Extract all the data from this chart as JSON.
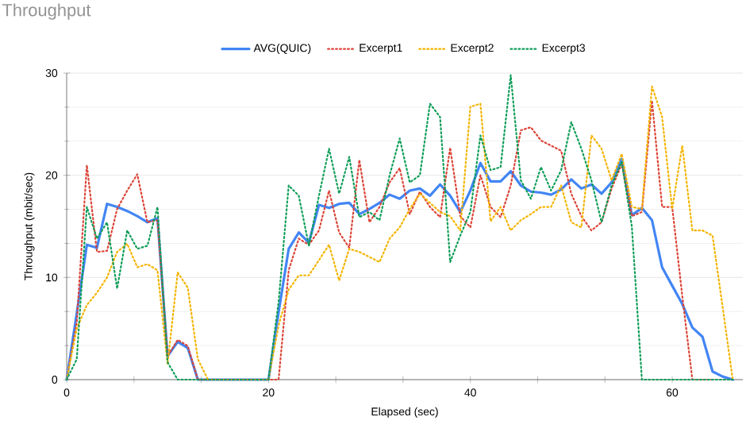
{
  "chart_data": {
    "type": "line",
    "title": "Throughput",
    "xlabel": "Elapsed (sec)",
    "ylabel": "Throughput (mbit/sec)",
    "x": [
      0,
      1,
      2,
      3,
      4,
      5,
      6,
      7,
      8,
      9,
      10,
      11,
      12,
      13,
      14,
      15,
      16,
      17,
      18,
      19,
      20,
      21,
      22,
      23,
      24,
      25,
      26,
      27,
      28,
      29,
      30,
      31,
      32,
      33,
      34,
      35,
      36,
      37,
      38,
      39,
      40,
      41,
      42,
      43,
      44,
      45,
      46,
      47,
      48,
      49,
      50,
      51,
      52,
      53,
      54,
      55,
      56,
      57,
      58,
      59,
      60,
      61,
      62,
      63,
      64,
      65,
      66
    ],
    "series": [
      {
        "name": "AVG(QUIC)",
        "color": "#4285f4",
        "line_style": "solid",
        "values": [
          0,
          6.5,
          13.2,
          12.9,
          17.2,
          16.9,
          16.5,
          16,
          15.4,
          15.8,
          2.3,
          3.7,
          3.1,
          0,
          0,
          0,
          0,
          0,
          0,
          0,
          0,
          6.6,
          12.8,
          14.4,
          13.4,
          17.1,
          16.8,
          17.2,
          17.3,
          16.2,
          16.7,
          17.3,
          18.1,
          17.7,
          18.5,
          18.7,
          18,
          19.1,
          18,
          16.4,
          18.5,
          21.2,
          19.4,
          19.4,
          20.4,
          19,
          18.4,
          18.3,
          18.1,
          18.6,
          19.6,
          18.7,
          19.1,
          18.2,
          19.3,
          21.6,
          16.1,
          16.8,
          15.6,
          11,
          9.2,
          7.4,
          5.1,
          4.2,
          0.8,
          0.3,
          0
        ]
      },
      {
        "name": "Excerpt1",
        "color": "#db4437",
        "line_style": "dotted",
        "values": [
          0,
          5.6,
          21,
          12.5,
          12.6,
          16.7,
          18.5,
          20.1,
          15.4,
          15.6,
          2.3,
          3.9,
          3.3,
          0,
          0,
          0,
          0,
          0,
          0,
          0,
          0,
          0,
          10.7,
          13.8,
          13.2,
          14.6,
          18.5,
          14.4,
          12.9,
          21.5,
          15.4,
          16.9,
          19.3,
          20.7,
          16.2,
          18.4,
          16.9,
          15.9,
          22.7,
          16,
          14.9,
          20,
          16.9,
          15.9,
          19,
          24.4,
          24.7,
          23.4,
          22.9,
          22.4,
          18.2,
          16,
          14.6,
          15.4,
          18.7,
          21.1,
          16,
          16.4,
          27.3,
          16.9,
          16.9,
          8.2,
          0,
          0,
          0,
          null,
          null
        ]
      },
      {
        "name": "Excerpt2",
        "color": "#f4b400",
        "line_style": "dotted",
        "values": [
          0,
          5,
          7.3,
          8.5,
          10,
          12.5,
          13.3,
          11,
          11.3,
          10.7,
          1.5,
          10.5,
          9,
          2,
          0,
          0,
          0,
          0,
          0,
          0,
          0,
          5.3,
          8.8,
          10.2,
          10.2,
          11.7,
          13.2,
          9.7,
          12.8,
          12.5,
          12,
          11.5,
          13.8,
          14.9,
          16.7,
          18.2,
          17.3,
          16.4,
          16,
          14.6,
          26.7,
          27,
          15.5,
          16.9,
          14.6,
          15.6,
          16.2,
          16.9,
          16.9,
          19,
          15.4,
          14.9,
          23.9,
          22.6,
          19.5,
          22.1,
          16.9,
          16.7,
          28.7,
          25.7,
          16.7,
          22.9,
          14.6,
          14.6,
          14.1,
          7.1,
          0
        ]
      },
      {
        "name": "Excerpt3",
        "color": "#0f9d58",
        "line_style": "dotted",
        "values": [
          0,
          2,
          16.9,
          13.8,
          15.4,
          8.9,
          14.6,
          12.8,
          13.1,
          16.9,
          1.7,
          0,
          0,
          0,
          0,
          0,
          0,
          0,
          0,
          0,
          0,
          7.6,
          19,
          18,
          13.1,
          18,
          22.6,
          18.2,
          21.8,
          15.9,
          16.4,
          15.6,
          20,
          23.6,
          19.3,
          20,
          27,
          25.7,
          11.5,
          14.1,
          16.4,
          23.9,
          20.5,
          20.8,
          29.8,
          19.5,
          17.7,
          20.8,
          18.5,
          20.5,
          25.2,
          22.6,
          19.5,
          15.4,
          19,
          21.3,
          15,
          0,
          0,
          0,
          0,
          0,
          0,
          0,
          0,
          0,
          0
        ]
      }
    ],
    "xlim": [
      0,
      67
    ],
    "ylim": [
      0,
      30
    ],
    "xticks": [
      0,
      {
        "value": 6.67,
        "label": null
      },
      {
        "value": 13.33,
        "label": null
      },
      20,
      {
        "value": 26.67,
        "label": null
      },
      {
        "value": 33.33,
        "label": null
      },
      40,
      {
        "value": 46.67,
        "label": null
      },
      {
        "value": 53.33,
        "label": null
      },
      60
    ],
    "yticks": [
      0,
      10,
      20,
      30
    ],
    "grid": "y",
    "legend": "top",
    "marker": "none"
  }
}
